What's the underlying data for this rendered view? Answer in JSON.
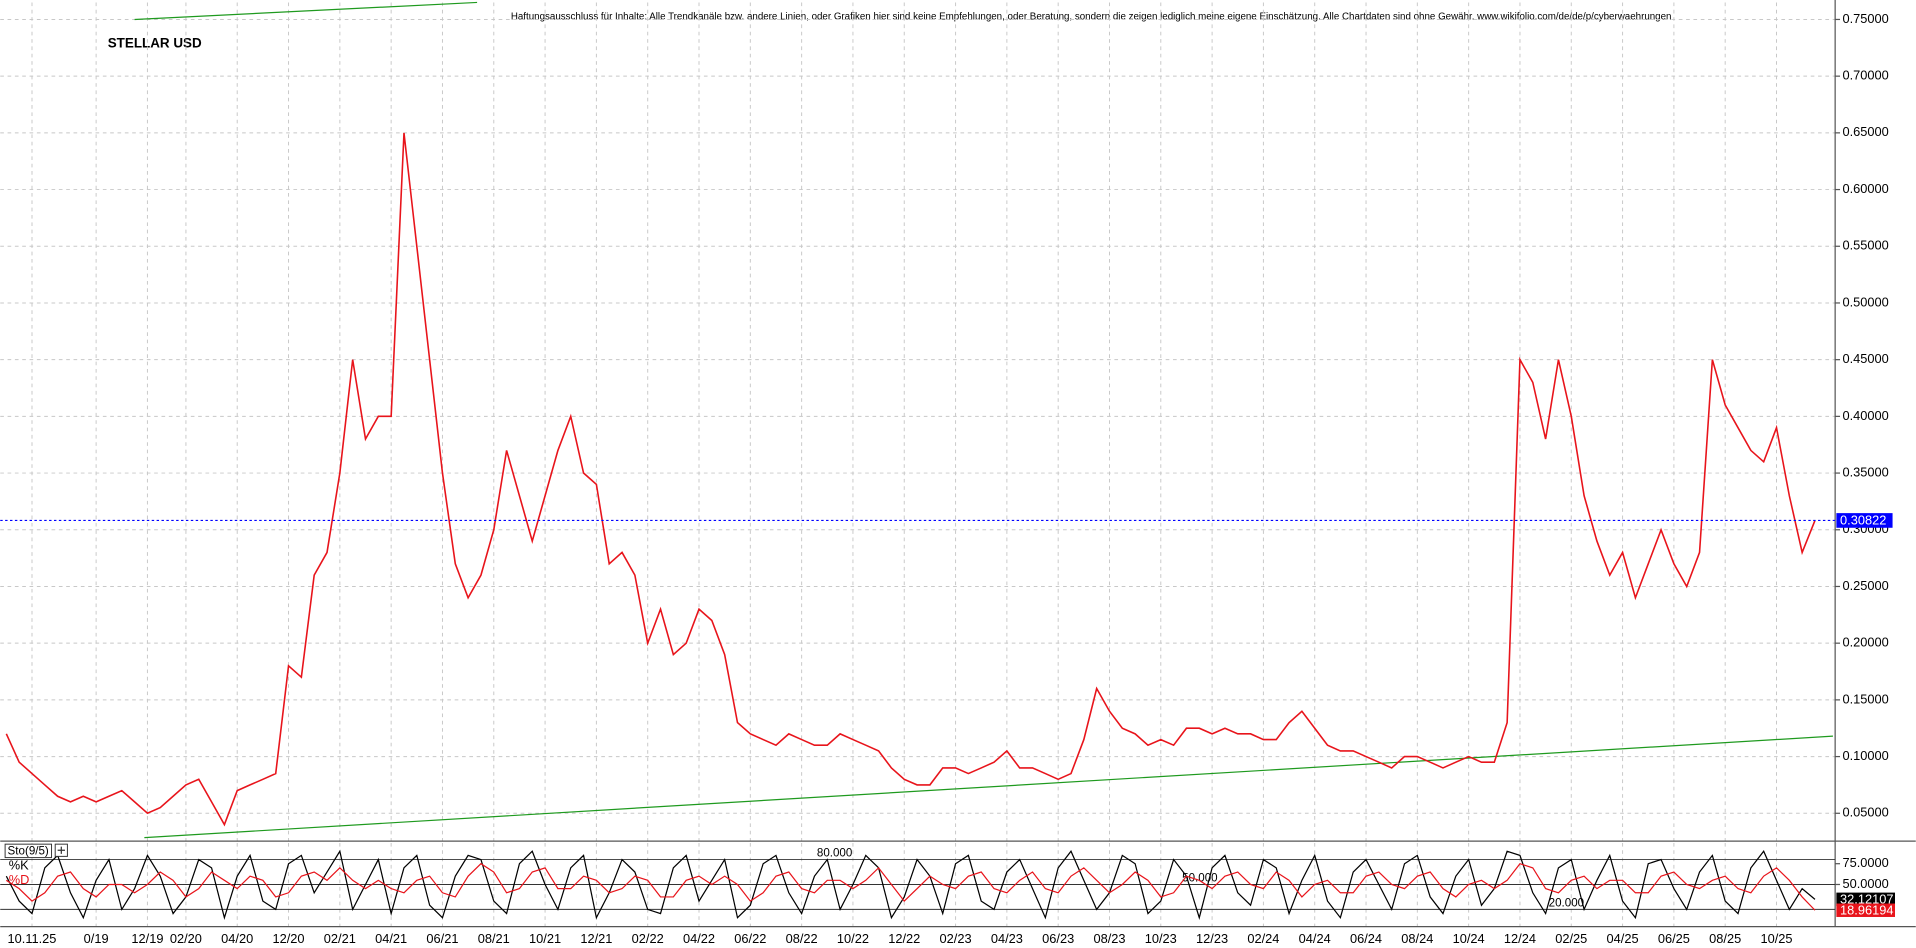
{
  "chart_data": [
    {
      "type": "line",
      "title": "STELLAR USD",
      "subtitle": "Haftungsausschluss für Inhalte: Alle Trendkanäle bzw. andere Linien, oder Grafiken hier sind keine Empfehlungen, oder Beratung, sondern die zeigen lediglich meine eigene Einschätzung. Alle Chartdaten sind ohne Gewähr. www.wikifolio.com/de/de/p/cyberwaehrungen",
      "categories": [
        null,
        null,
        "10.11.25",
        null,
        null,
        null,
        null,
        "0/19",
        null,
        null,
        null,
        "12/19",
        null,
        null,
        "02/20",
        null,
        null,
        null,
        "04/20",
        null,
        null,
        null,
        "12/20",
        null,
        null,
        null,
        "02/21",
        null,
        null,
        null,
        "04/21",
        null,
        null,
        null,
        "06/21",
        null,
        null,
        null,
        "08/21",
        null,
        null,
        null,
        "10/21",
        null,
        null,
        null,
        "12/21",
        null,
        null,
        null,
        "02/22",
        null,
        null,
        null,
        "04/22",
        null,
        null,
        null,
        "06/22",
        null,
        null,
        null,
        "08/22",
        null,
        null,
        null,
        "10/22",
        null,
        null,
        null,
        "12/22",
        null,
        null,
        null,
        "02/23",
        null,
        null,
        null,
        "04/23",
        null,
        null,
        null,
        "06/23",
        null,
        null,
        null,
        "08/23",
        null,
        null,
        null,
        "10/23",
        null,
        null,
        null,
        "12/23",
        null,
        null,
        null,
        "02/24",
        null,
        null,
        null,
        "04/24",
        null,
        null,
        null,
        "06/24",
        null,
        null,
        null,
        "08/24",
        null,
        null,
        null,
        "10/24",
        null,
        null,
        null,
        "12/24",
        null,
        null,
        null,
        "02/25",
        null,
        null,
        null,
        "04/25",
        null,
        null,
        null,
        "06/25",
        null,
        null,
        null,
        "08/25",
        null,
        null,
        null,
        "10/25",
        null,
        null,
        null
      ],
      "values": [
        0.12,
        0.095,
        0.085,
        0.075,
        0.065,
        0.06,
        0.065,
        0.06,
        0.065,
        0.07,
        0.06,
        0.05,
        0.055,
        0.065,
        0.075,
        0.08,
        0.06,
        0.04,
        0.07,
        0.075,
        0.08,
        0.085,
        0.18,
        0.17,
        0.26,
        0.28,
        0.35,
        0.45,
        0.38,
        0.4,
        0.4,
        0.65,
        0.55,
        0.45,
        0.35,
        0.27,
        0.24,
        0.26,
        0.3,
        0.37,
        0.33,
        0.29,
        0.33,
        0.37,
        0.4,
        0.35,
        0.34,
        0.27,
        0.28,
        0.26,
        0.2,
        0.23,
        0.19,
        0.2,
        0.23,
        0.22,
        0.19,
        0.13,
        0.12,
        0.115,
        0.11,
        0.12,
        0.115,
        0.11,
        0.11,
        0.12,
        0.115,
        0.11,
        0.105,
        0.09,
        0.08,
        0.075,
        0.075,
        0.09,
        0.09,
        0.085,
        0.09,
        0.095,
        0.105,
        0.09,
        0.09,
        0.085,
        0.08,
        0.085,
        0.115,
        0.16,
        0.14,
        0.125,
        0.12,
        0.11,
        0.115,
        0.11,
        0.125,
        0.125,
        0.12,
        0.125,
        0.12,
        0.12,
        0.115,
        0.115,
        0.13,
        0.14,
        0.125,
        0.11,
        0.105,
        0.105,
        0.1,
        0.095,
        0.09,
        0.1,
        0.1,
        0.095,
        0.09,
        0.095,
        0.1,
        0.095,
        0.095,
        0.13,
        0.45,
        0.43,
        0.38,
        0.45,
        0.4,
        0.33,
        0.29,
        0.26,
        0.28,
        0.24,
        0.27,
        0.3,
        0.27,
        0.25,
        0.28,
        0.45,
        0.41,
        0.39,
        0.37,
        0.36,
        0.39,
        0.33,
        0.28,
        0.30822
      ],
      "color": "#e8141b",
      "last_value_color": "#0000ff",
      "ylim": [
        0.026,
        0.765
      ],
      "yticks": [
        {
          "value": 0.05,
          "label": "0.05000"
        },
        {
          "value": 0.1,
          "label": "0.10000"
        },
        {
          "value": 0.15,
          "label": "0.15000"
        },
        {
          "value": 0.2,
          "label": "0.20000"
        },
        {
          "value": 0.25,
          "label": "0.25000"
        },
        {
          "value": 0.3,
          "label": "0.30000"
        },
        {
          "value": 0.35,
          "label": "0.35000"
        },
        {
          "value": 0.4,
          "label": "0.40000"
        },
        {
          "value": 0.45,
          "label": "0.45000"
        },
        {
          "value": 0.5,
          "label": "0.50000"
        },
        {
          "value": 0.55,
          "label": "0.55000"
        },
        {
          "value": 0.6,
          "label": "0.60000"
        },
        {
          "value": 0.65,
          "label": "0.65000"
        },
        {
          "value": 0.7,
          "label": "0.70000"
        },
        {
          "value": 0.75,
          "label": "0.75000"
        }
      ],
      "grid": true,
      "trend_lines": [
        {
          "color": "#1f9a1f",
          "x": [
            10.76,
            142.4
          ],
          "y": [
            0.0285,
            0.118
          ]
        },
        {
          "color": "#1f9a1f",
          "x": [
            10,
            36.7
          ],
          "y": [
            0.75,
            0.765
          ]
        }
      ]
    },
    {
      "type": "line",
      "title": "Sto(9/5)",
      "series": [
        {
          "name": "%K",
          "color": "#000000",
          "values": [
            60,
            30,
            15,
            70,
            85,
            40,
            10,
            55,
            80,
            20,
            45,
            85,
            60,
            15,
            35,
            80,
            70,
            10,
            60,
            85,
            30,
            20,
            75,
            85,
            40,
            65,
            90,
            20,
            50,
            80,
            15,
            70,
            85,
            25,
            10,
            60,
            85,
            80,
            30,
            15,
            75,
            90,
            50,
            20,
            70,
            85,
            10,
            40,
            80,
            65,
            20,
            15,
            70,
            85,
            30,
            55,
            80,
            10,
            25,
            75,
            85,
            40,
            15,
            60,
            80,
            20,
            50,
            85,
            70,
            10,
            35,
            80,
            60,
            15,
            75,
            85,
            30,
            20,
            65,
            80,
            45,
            10,
            70,
            90,
            55,
            20,
            40,
            85,
            75,
            15,
            30,
            80,
            60,
            10,
            70,
            85,
            40,
            25,
            80,
            70,
            15,
            55,
            85,
            30,
            10,
            65,
            80,
            50,
            20,
            75,
            85,
            35,
            15,
            60,
            80,
            25,
            45,
            90,
            85,
            40,
            15,
            70,
            80,
            20,
            55,
            85,
            30,
            10,
            75,
            80,
            45,
            20,
            65,
            85,
            30,
            15,
            70,
            90,
            55,
            20,
            45,
            32.12107
          ]
        },
        {
          "name": "%D",
          "color": "#e8141b",
          "values": [
            55,
            45,
            30,
            40,
            60,
            65,
            45,
            35,
            50,
            50,
            40,
            50,
            65,
            55,
            35,
            45,
            65,
            55,
            45,
            60,
            55,
            35,
            40,
            60,
            65,
            55,
            70,
            55,
            45,
            55,
            45,
            40,
            55,
            60,
            40,
            35,
            60,
            75,
            65,
            40,
            45,
            65,
            70,
            45,
            45,
            60,
            55,
            40,
            45,
            60,
            55,
            35,
            35,
            55,
            60,
            50,
            60,
            50,
            30,
            40,
            60,
            65,
            45,
            40,
            55,
            55,
            45,
            55,
            70,
            50,
            30,
            45,
            60,
            50,
            45,
            60,
            65,
            45,
            40,
            55,
            65,
            45,
            40,
            60,
            70,
            55,
            40,
            50,
            65,
            55,
            35,
            40,
            60,
            55,
            45,
            60,
            65,
            50,
            45,
            65,
            55,
            35,
            50,
            55,
            40,
            40,
            60,
            65,
            50,
            45,
            60,
            65,
            45,
            35,
            50,
            55,
            45,
            55,
            75,
            70,
            45,
            40,
            55,
            60,
            45,
            55,
            55,
            40,
            40,
            60,
            65,
            50,
            45,
            55,
            60,
            45,
            40,
            60,
            70,
            55,
            35,
            18.96194
          ]
        }
      ],
      "ylim": [
        0,
        100
      ],
      "yticks": [
        {
          "value": 75,
          "label": "75.0000"
        },
        {
          "value": 50,
          "label": "50.0000"
        }
      ],
      "levels": [
        {
          "value": 80,
          "label": "80.000"
        },
        {
          "value": 50,
          "label": "50.000"
        },
        {
          "value": 20,
          "label": "20.000"
        }
      ]
    }
  ]
}
